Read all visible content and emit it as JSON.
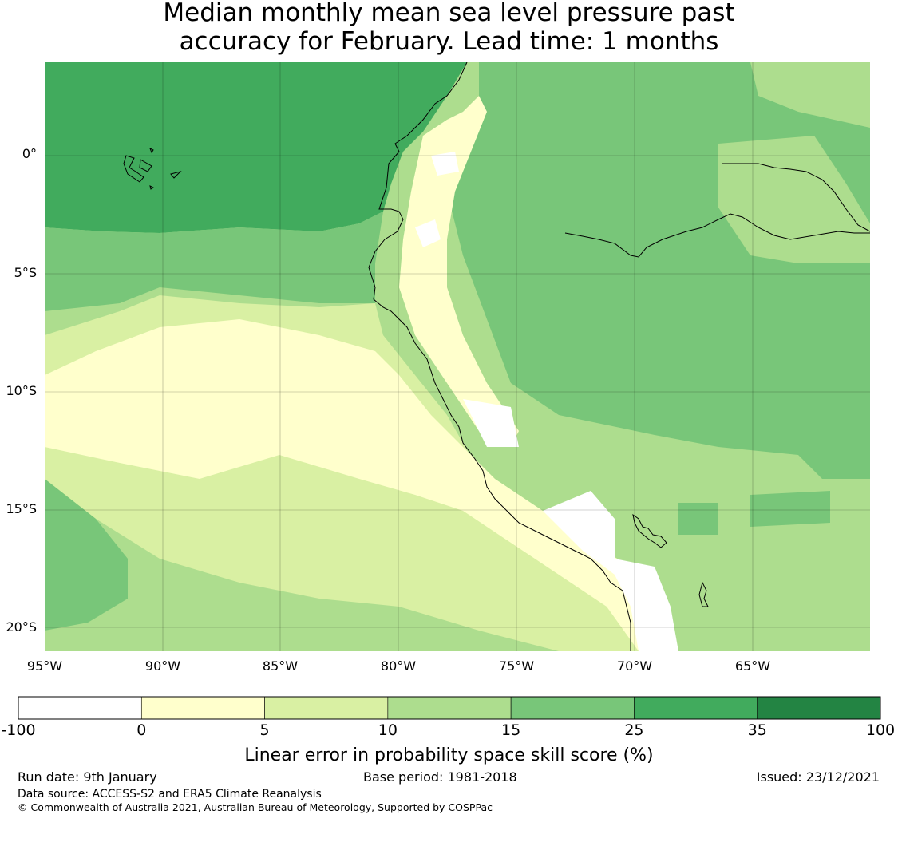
{
  "title": {
    "line1": "Median monthly mean sea level pressure past",
    "line2": "accuracy for February. Lead time: 1 months"
  },
  "map": {
    "latitude_labels": [
      "0°",
      "5°S",
      "10°S",
      "15°S",
      "20°S"
    ],
    "longitude_labels": [
      "95°W",
      "90°W",
      "85°W",
      "80°W",
      "75°W",
      "70°W",
      "65°W"
    ]
  },
  "colorbar": {
    "ticks": [
      "-100",
      "0",
      "5",
      "10",
      "15",
      "25",
      "35",
      "100"
    ],
    "colors": [
      "#ffffff",
      "#ffffcc",
      "#d9f0a3",
      "#addd8e",
      "#78c679",
      "#41ab5d",
      "#238443"
    ],
    "label": "Linear error in probability space skill score (%)"
  },
  "footer": {
    "run_date": "Run date: 9th January",
    "base_period": "Base period: 1981-2018",
    "issued": "Issued: 23/12/2021",
    "data_source": "Data source: ACCESS-S2 and ERA5 Climate Reanalysis",
    "copyright": "© Commonwealth of Australia 2021, Australian Bureau of Meteorology, Supported by COSPPac"
  }
}
